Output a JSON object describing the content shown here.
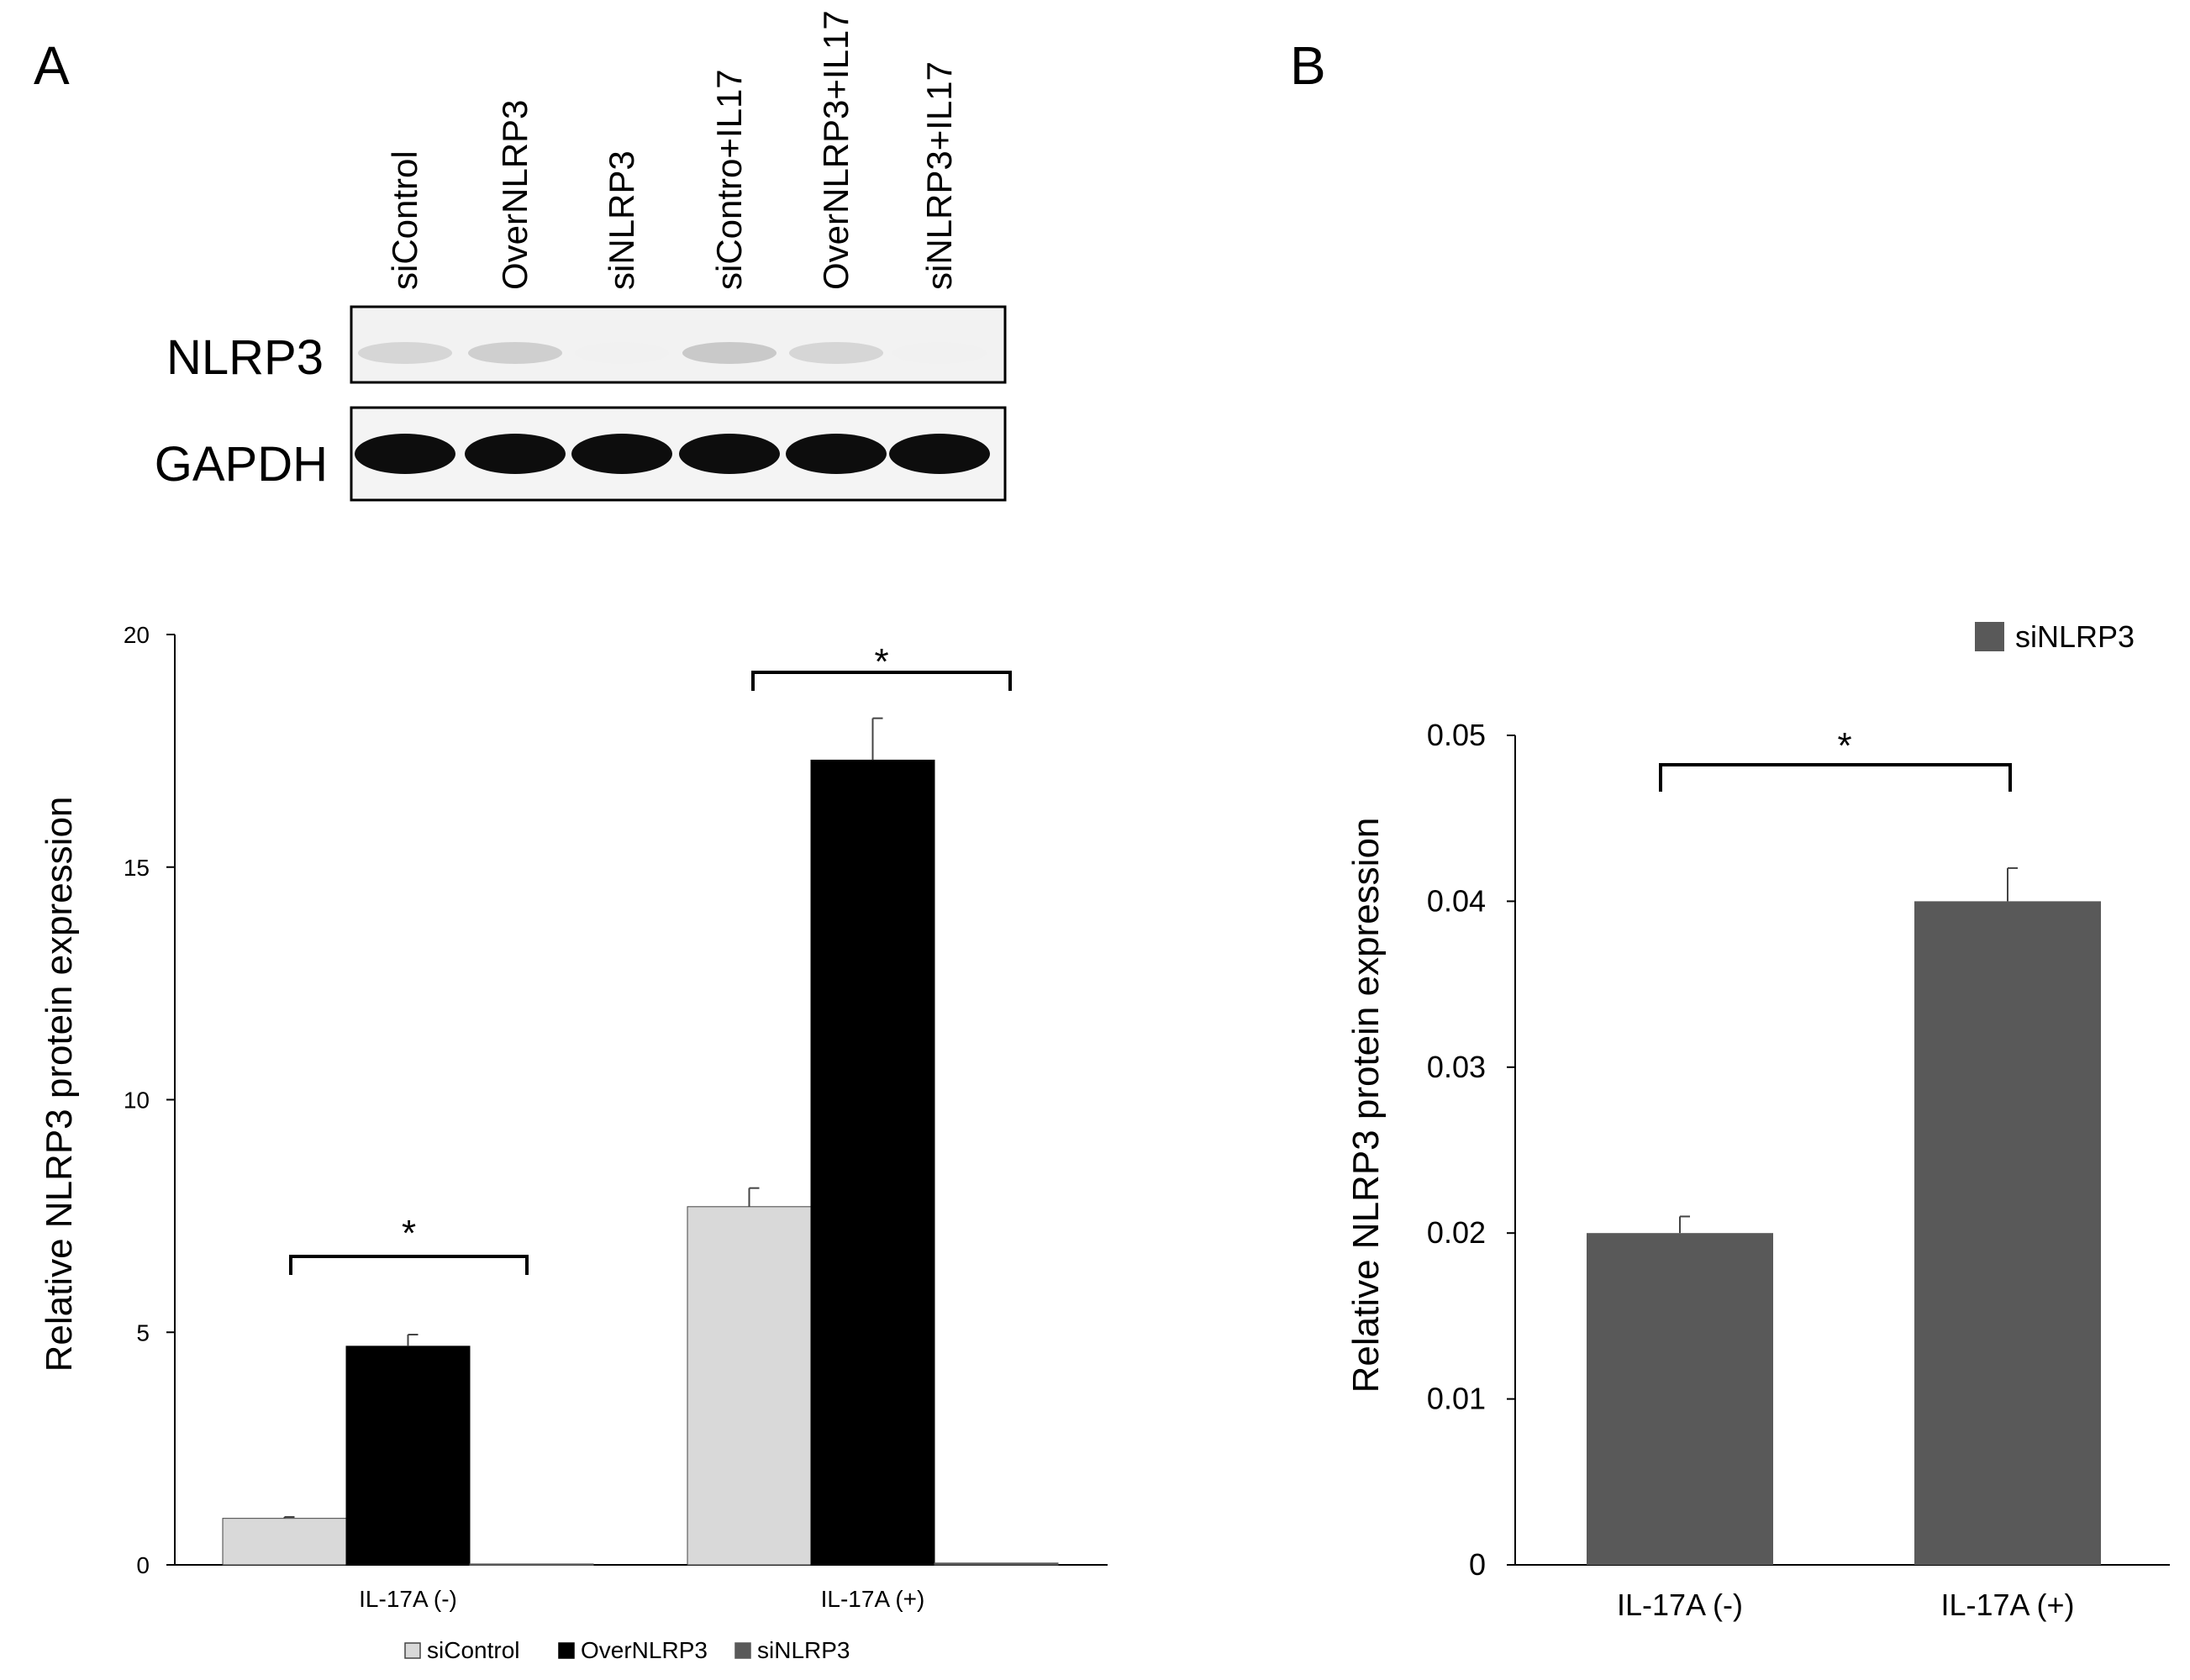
{
  "figure": {
    "panel_a_letter": "A",
    "panel_b_letter": "B"
  },
  "blot": {
    "lanes": [
      "siControl",
      "OverNLRP3",
      "siNLRP3",
      "siContro+IL17",
      "OverNLRP3+IL17",
      "siNLRP3+IL17"
    ],
    "rows": [
      {
        "label": "NLRP3",
        "intensities": [
          0.5,
          0.55,
          0.05,
          0.6,
          0.5,
          0.03
        ]
      },
      {
        "label": "GAPDH",
        "intensities": [
          1.0,
          1.0,
          1.0,
          1.0,
          1.0,
          1.0
        ]
      }
    ]
  },
  "colors": {
    "siControl": "#d9d9d9",
    "OverNLRP3": "#000000",
    "siNLRP3": "#595959",
    "axis": "#000000"
  },
  "chart_data": [
    {
      "id": "A",
      "type": "bar",
      "title": "",
      "xlabel": "",
      "ylabel": "Relative NLRP3 protein expression",
      "ylim": [
        0,
        20
      ],
      "yticks": [
        "0",
        "5",
        "10",
        "15",
        "20"
      ],
      "categories": [
        "IL-17A (-)",
        "IL-17A (+)"
      ],
      "series": [
        {
          "name": "siControl",
          "values": [
            1.0,
            7.7
          ],
          "errors": [
            0.03,
            0.4
          ]
        },
        {
          "name": "OverNLRP3",
          "values": [
            4.7,
            17.3
          ],
          "errors": [
            0.25,
            0.9
          ]
        },
        {
          "name": "siNLRP3",
          "values": [
            0.02,
            0.04
          ],
          "errors": [
            0.0,
            0.0
          ]
        }
      ],
      "legend": "bottom",
      "grid": false,
      "annotations": [
        {
          "text": "*",
          "between": [
            "siControl",
            "siNLRP3"
          ],
          "category": "IL-17A (-)"
        },
        {
          "text": "*",
          "between": [
            "siControl",
            "siNLRP3"
          ],
          "category": "IL-17A (+)"
        }
      ]
    },
    {
      "id": "B",
      "type": "bar",
      "title": "",
      "xlabel": "",
      "ylabel": "Relative NLRP3 protein expression",
      "ylim": [
        0,
        0.05
      ],
      "yticks": [
        "0",
        "0.01",
        "0.02",
        "0.03",
        "0.04",
        "0.05"
      ],
      "categories": [
        "IL-17A (-)",
        "IL-17A (+)"
      ],
      "series": [
        {
          "name": "siNLRP3",
          "values": [
            0.02,
            0.04
          ],
          "errors": [
            0.001,
            0.002
          ]
        }
      ],
      "legend": "top-right",
      "grid": false,
      "annotations": [
        {
          "text": "*",
          "between": [
            "IL-17A (-)",
            "IL-17A (+)"
          ]
        }
      ]
    }
  ]
}
